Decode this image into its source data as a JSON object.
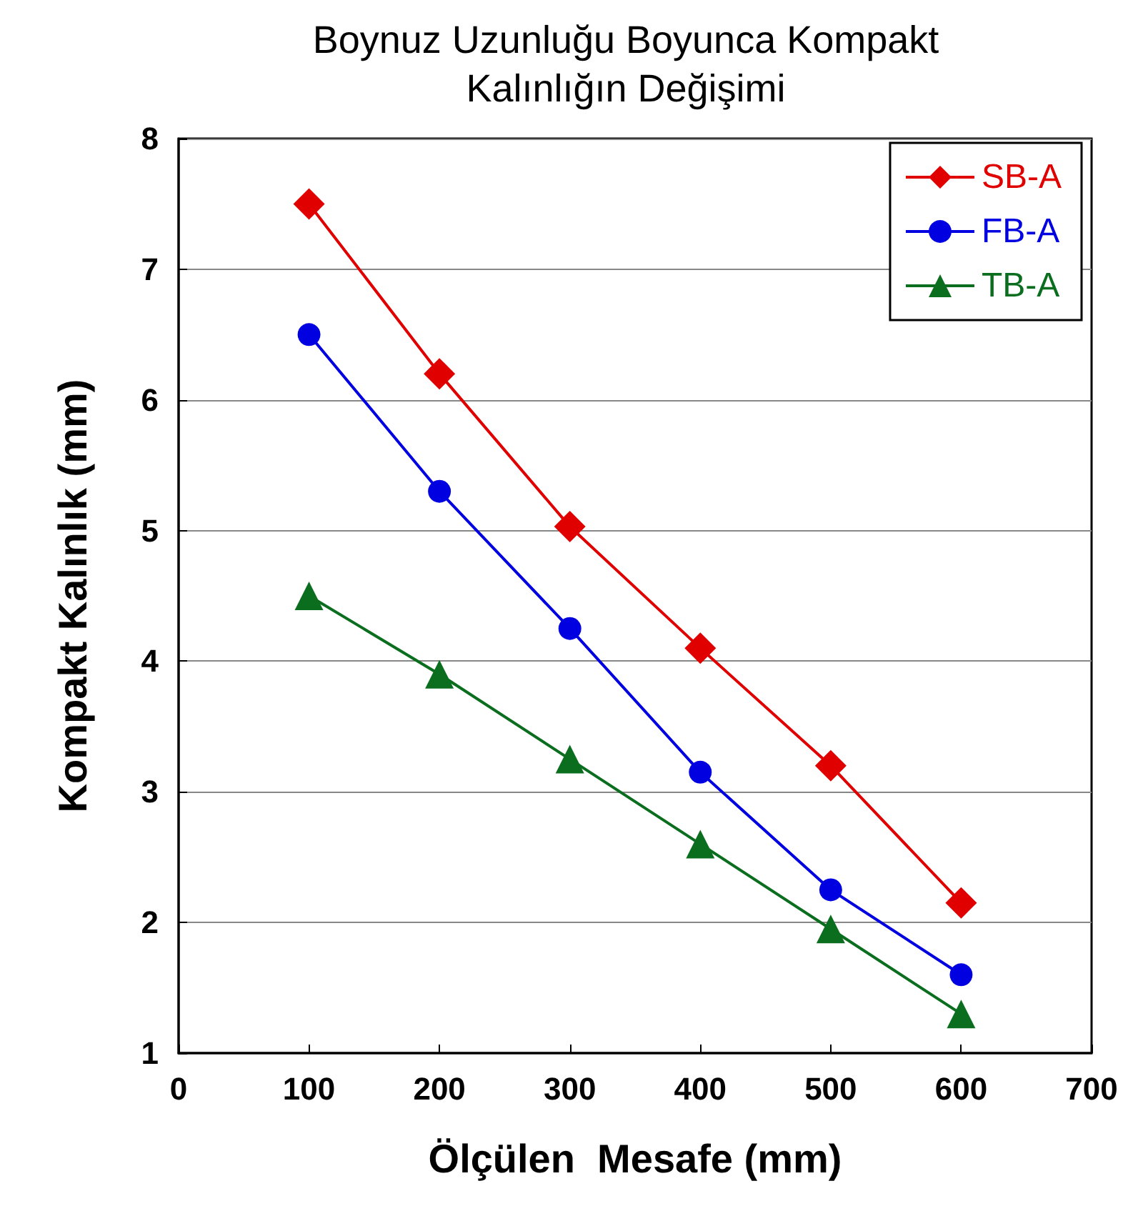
{
  "chart_data": {
    "type": "line",
    "title": "Boynuz Uzunluğu Boyunca Kompakt\nKalınlığın Değişimi",
    "xlabel": "Ölçülen  Mesafe (mm)",
    "ylabel": "Kompakt Kalınlık (mm)",
    "x": [
      100,
      200,
      300,
      400,
      500,
      600
    ],
    "series": [
      {
        "name": "SB-A",
        "color": "#e00000",
        "marker": "diamond",
        "values": [
          7.5,
          6.2,
          5.03,
          4.1,
          3.2,
          2.15
        ]
      },
      {
        "name": "FB-A",
        "color": "#0000e0",
        "marker": "circle",
        "values": [
          6.5,
          5.3,
          4.25,
          3.15,
          2.25,
          1.6
        ]
      },
      {
        "name": "TB-A",
        "color": "#0a6e1e",
        "marker": "triangle",
        "values": [
          4.5,
          3.9,
          3.25,
          2.6,
          1.95,
          1.3
        ]
      }
    ],
    "xlim": [
      0,
      700
    ],
    "xticks": [
      0,
      100,
      200,
      300,
      400,
      500,
      600,
      700
    ],
    "ylim": [
      1,
      8
    ],
    "yticks": [
      1,
      2,
      3,
      4,
      5,
      6,
      7,
      8
    ],
    "grid": "y",
    "legend": "top right",
    "line_style": "solid"
  }
}
